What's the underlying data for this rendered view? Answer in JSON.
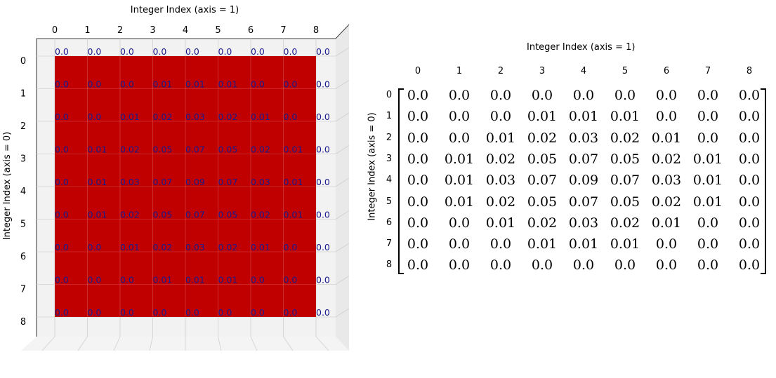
{
  "chart_data": [
    {
      "type": "heatmap",
      "view": "3d-top",
      "xlabel": "Integer Index (axis = 1)",
      "ylabel": "Integer Index (axis = 0)",
      "x_ticks": [
        "0",
        "1",
        "2",
        "3",
        "4",
        "5",
        "6",
        "7",
        "8"
      ],
      "y_ticks": [
        "0",
        "1",
        "2",
        "3",
        "4",
        "5",
        "6",
        "7",
        "8"
      ],
      "surface_color": "#c00000",
      "label_color": "#1a1a8c",
      "grid": true,
      "values": [
        [
          "0.0",
          "0.0",
          "0.0",
          "0.0",
          "0.0",
          "0.0",
          "0.0",
          "0.0",
          "0.0"
        ],
        [
          "0.0",
          "0.0",
          "0.0",
          "0.01",
          "0.01",
          "0.01",
          "0.0",
          "0.0",
          "0.0"
        ],
        [
          "0.0",
          "0.0",
          "0.01",
          "0.02",
          "0.03",
          "0.02",
          "0.01",
          "0.0",
          "0.0"
        ],
        [
          "0.0",
          "0.01",
          "0.02",
          "0.05",
          "0.07",
          "0.05",
          "0.02",
          "0.01",
          "0.0"
        ],
        [
          "0.0",
          "0.01",
          "0.03",
          "0.07",
          "0.09",
          "0.07",
          "0.03",
          "0.01",
          "0.0"
        ],
        [
          "0.0",
          "0.01",
          "0.02",
          "0.05",
          "0.07",
          "0.05",
          "0.02",
          "0.01",
          "0.0"
        ],
        [
          "0.0",
          "0.0",
          "0.01",
          "0.02",
          "0.03",
          "0.02",
          "0.01",
          "0.0",
          "0.0"
        ],
        [
          "0.0",
          "0.0",
          "0.0",
          "0.01",
          "0.01",
          "0.01",
          "0.0",
          "0.0",
          "0.0"
        ],
        [
          "0.0",
          "0.0",
          "0.0",
          "0.0",
          "0.0",
          "0.0",
          "0.0",
          "0.0",
          "0.0"
        ]
      ]
    },
    {
      "type": "table",
      "view": "matrix",
      "xlabel": "Integer Index (axis = 1)",
      "ylabel": "Integer Index (axis = 0)",
      "x_ticks": [
        "0",
        "1",
        "2",
        "3",
        "4",
        "5",
        "6",
        "7",
        "8"
      ],
      "y_ticks": [
        "0",
        "1",
        "2",
        "3",
        "4",
        "5",
        "6",
        "7",
        "8"
      ],
      "values": [
        [
          "0.0",
          "0.0",
          "0.0",
          "0.0",
          "0.0",
          "0.0",
          "0.0",
          "0.0",
          "0.0"
        ],
        [
          "0.0",
          "0.0",
          "0.0",
          "0.01",
          "0.01",
          "0.01",
          "0.0",
          "0.0",
          "0.0"
        ],
        [
          "0.0",
          "0.0",
          "0.01",
          "0.02",
          "0.03",
          "0.02",
          "0.01",
          "0.0",
          "0.0"
        ],
        [
          "0.0",
          "0.01",
          "0.02",
          "0.05",
          "0.07",
          "0.05",
          "0.02",
          "0.01",
          "0.0"
        ],
        [
          "0.0",
          "0.01",
          "0.03",
          "0.07",
          "0.09",
          "0.07",
          "0.03",
          "0.01",
          "0.0"
        ],
        [
          "0.0",
          "0.01",
          "0.02",
          "0.05",
          "0.07",
          "0.05",
          "0.02",
          "0.01",
          "0.0"
        ],
        [
          "0.0",
          "0.0",
          "0.01",
          "0.02",
          "0.03",
          "0.02",
          "0.01",
          "0.0",
          "0.0"
        ],
        [
          "0.0",
          "0.0",
          "0.0",
          "0.01",
          "0.01",
          "0.01",
          "0.0",
          "0.0",
          "0.0"
        ],
        [
          "0.0",
          "0.0",
          "0.0",
          "0.0",
          "0.0",
          "0.0",
          "0.0",
          "0.0",
          "0.0"
        ]
      ]
    }
  ]
}
